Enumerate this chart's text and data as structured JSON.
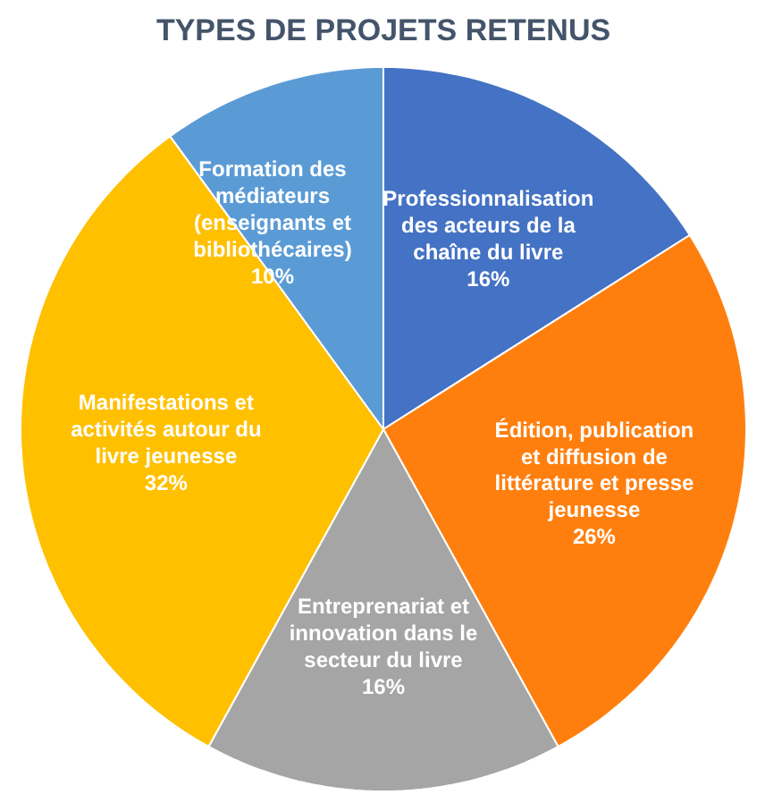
{
  "chart_data": {
    "type": "pie",
    "title": "TYPES DE PROJETS RETENUS",
    "categories": [
      "Professionnalisation\ndes acteurs de la\nchaîne du livre",
      "Édition, publication\net diffusion de\nlittérature et presse\njeunesse",
      "Entreprenariat et\ninnovation dans le\nsecteur du livre",
      "Manifestations et\nactivités autour du\nlivre jeunesse",
      "Formation des\nmédiateurs\n(enseignants et\nbibliothécaires)"
    ],
    "values": [
      16,
      26,
      16,
      32,
      10
    ],
    "value_labels": [
      "16%",
      "26%",
      "16%",
      "32%",
      "10%"
    ],
    "colors": [
      "#4472c4",
      "#ff7f0e",
      "#a5a5a5",
      "#ffc000",
      "#5b9bd5"
    ]
  }
}
